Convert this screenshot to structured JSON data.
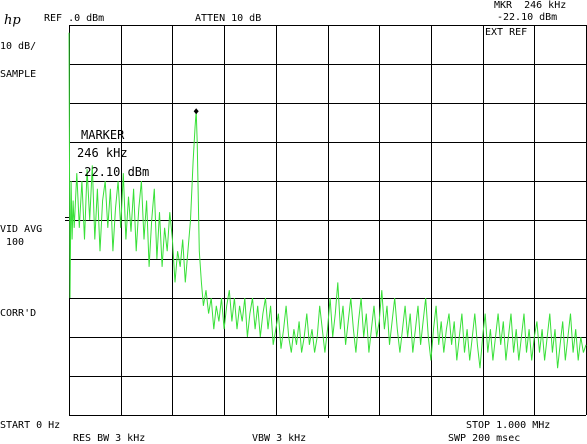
{
  "header": {
    "logo": "hp",
    "ref_level": "REF .0 dBm",
    "atten": "ATTEN 10 dB",
    "marker_readout_freq": "MKR  246 kHz",
    "marker_readout_amp": "-22.10 dBm",
    "ext_ref": "EXT REF"
  },
  "left_panel": {
    "scale": "10 dB/",
    "detector": "SAMPLE",
    "vid_avg_label": "VID AVG",
    "vid_avg_value": "100",
    "corr": "CORR'D"
  },
  "marker_box": {
    "title": "MARKER",
    "freq": "246 kHz",
    "amp": "-22.10 dBm"
  },
  "footer": {
    "start": "START 0 Hz",
    "stop": "STOP 1.000 MHz",
    "res_bw": "RES BW 3 kHz",
    "vbw": "VBW 3 kHz",
    "sweep": "SWP 200 msec"
  },
  "colors": {
    "trace": "#38e038",
    "graticule": "#000000",
    "background": "#ffffff"
  },
  "chart_data": {
    "type": "line",
    "x_unit": "kHz",
    "y_unit": "dBm",
    "xlim": [
      0,
      1000
    ],
    "ylim": [
      -100,
      0
    ],
    "x_divisions": 10,
    "y_divisions": 10,
    "grid": true,
    "marker": {
      "x": 246,
      "y": -22.1
    },
    "series": [
      {
        "values": [
          [
            0,
            -2
          ],
          [
            2,
            -70
          ],
          [
            4,
            -40
          ],
          [
            6,
            -55
          ],
          [
            8,
            -45
          ],
          [
            10,
            -52
          ],
          [
            15,
            -38
          ],
          [
            20,
            -52
          ],
          [
            25,
            -40
          ],
          [
            30,
            -55
          ],
          [
            35,
            -37
          ],
          [
            40,
            -50
          ],
          [
            45,
            -36
          ],
          [
            50,
            -55
          ],
          [
            55,
            -42
          ],
          [
            60,
            -58
          ],
          [
            65,
            -45
          ],
          [
            70,
            -40
          ],
          [
            75,
            -52
          ],
          [
            80,
            -42
          ],
          [
            85,
            -58
          ],
          [
            90,
            -47
          ],
          [
            95,
            -40
          ],
          [
            100,
            -52
          ],
          [
            105,
            -38
          ],
          [
            110,
            -55
          ],
          [
            115,
            -44
          ],
          [
            120,
            -53
          ],
          [
            125,
            -42
          ],
          [
            130,
            -58
          ],
          [
            135,
            -47
          ],
          [
            140,
            -40
          ],
          [
            145,
            -55
          ],
          [
            150,
            -45
          ],
          [
            155,
            -62
          ],
          [
            160,
            -50
          ],
          [
            165,
            -42
          ],
          [
            170,
            -60
          ],
          [
            175,
            -48
          ],
          [
            180,
            -62
          ],
          [
            185,
            -52
          ],
          [
            190,
            -58
          ],
          [
            195,
            -48
          ],
          [
            200,
            -55
          ],
          [
            205,
            -66
          ],
          [
            210,
            -58
          ],
          [
            215,
            -62
          ],
          [
            220,
            -55
          ],
          [
            225,
            -66
          ],
          [
            230,
            -58
          ],
          [
            235,
            -50
          ],
          [
            240,
            -35
          ],
          [
            244,
            -26
          ],
          [
            246,
            -22
          ],
          [
            248,
            -30
          ],
          [
            252,
            -58
          ],
          [
            256,
            -66
          ],
          [
            260,
            -72
          ],
          [
            265,
            -68
          ],
          [
            270,
            -74
          ],
          [
            275,
            -70
          ],
          [
            280,
            -78
          ],
          [
            285,
            -72
          ],
          [
            290,
            -76
          ],
          [
            295,
            -70
          ],
          [
            300,
            -78
          ],
          [
            305,
            -72
          ],
          [
            310,
            -68
          ],
          [
            315,
            -76
          ],
          [
            320,
            -70
          ],
          [
            325,
            -78
          ],
          [
            330,
            -72
          ],
          [
            335,
            -76
          ],
          [
            340,
            -70
          ],
          [
            345,
            -80
          ],
          [
            350,
            -74
          ],
          [
            355,
            -70
          ],
          [
            360,
            -78
          ],
          [
            365,
            -72
          ],
          [
            370,
            -80
          ],
          [
            375,
            -74
          ],
          [
            380,
            -70
          ],
          [
            385,
            -78
          ],
          [
            390,
            -72
          ],
          [
            395,
            -82
          ],
          [
            400,
            -78
          ],
          [
            405,
            -74
          ],
          [
            410,
            -83
          ],
          [
            415,
            -78
          ],
          [
            420,
            -72
          ],
          [
            425,
            -80
          ],
          [
            430,
            -84
          ],
          [
            435,
            -78
          ],
          [
            440,
            -82
          ],
          [
            445,
            -76
          ],
          [
            450,
            -84
          ],
          [
            455,
            -80
          ],
          [
            460,
            -74
          ],
          [
            465,
            -82
          ],
          [
            470,
            -78
          ],
          [
            475,
            -84
          ],
          [
            480,
            -80
          ],
          [
            485,
            -72
          ],
          [
            490,
            -78
          ],
          [
            495,
            -84
          ],
          [
            500,
            -78
          ],
          [
            505,
            -70
          ],
          [
            510,
            -80
          ],
          [
            515,
            -74
          ],
          [
            520,
            -66
          ],
          [
            525,
            -78
          ],
          [
            530,
            -72
          ],
          [
            535,
            -82
          ],
          [
            540,
            -76
          ],
          [
            545,
            -70
          ],
          [
            550,
            -78
          ],
          [
            555,
            -84
          ],
          [
            560,
            -76
          ],
          [
            565,
            -70
          ],
          [
            570,
            -80
          ],
          [
            575,
            -74
          ],
          [
            580,
            -84
          ],
          [
            585,
            -78
          ],
          [
            590,
            -72
          ],
          [
            595,
            -80
          ],
          [
            600,
            -76
          ],
          [
            605,
            -68
          ],
          [
            610,
            -78
          ],
          [
            615,
            -72
          ],
          [
            620,
            -82
          ],
          [
            625,
            -76
          ],
          [
            630,
            -70
          ],
          [
            635,
            -78
          ],
          [
            640,
            -84
          ],
          [
            645,
            -78
          ],
          [
            650,
            -72
          ],
          [
            655,
            -80
          ],
          [
            660,
            -74
          ],
          [
            665,
            -84
          ],
          [
            670,
            -78
          ],
          [
            675,
            -72
          ],
          [
            680,
            -82
          ],
          [
            685,
            -76
          ],
          [
            690,
            -70
          ],
          [
            695,
            -80
          ],
          [
            700,
            -86
          ],
          [
            705,
            -78
          ],
          [
            710,
            -72
          ],
          [
            715,
            -82
          ],
          [
            720,
            -76
          ],
          [
            725,
            -84
          ],
          [
            730,
            -78
          ],
          [
            735,
            -74
          ],
          [
            740,
            -82
          ],
          [
            745,
            -76
          ],
          [
            750,
            -86
          ],
          [
            755,
            -80
          ],
          [
            760,
            -74
          ],
          [
            765,
            -84
          ],
          [
            770,
            -78
          ],
          [
            775,
            -86
          ],
          [
            780,
            -80
          ],
          [
            785,
            -74
          ],
          [
            790,
            -82
          ],
          [
            795,
            -88
          ],
          [
            800,
            -80
          ],
          [
            805,
            -74
          ],
          [
            810,
            -84
          ],
          [
            815,
            -78
          ],
          [
            820,
            -86
          ],
          [
            825,
            -80
          ],
          [
            830,
            -74
          ],
          [
            835,
            -82
          ],
          [
            840,
            -76
          ],
          [
            845,
            -86
          ],
          [
            850,
            -80
          ],
          [
            855,
            -74
          ],
          [
            860,
            -84
          ],
          [
            865,
            -78
          ],
          [
            870,
            -86
          ],
          [
            875,
            -80
          ],
          [
            880,
            -74
          ],
          [
            885,
            -84
          ],
          [
            890,
            -78
          ],
          [
            895,
            -86
          ],
          [
            900,
            -80
          ],
          [
            905,
            -76
          ],
          [
            910,
            -84
          ],
          [
            915,
            -78
          ],
          [
            920,
            -86
          ],
          [
            925,
            -80
          ],
          [
            930,
            -74
          ],
          [
            935,
            -84
          ],
          [
            940,
            -78
          ],
          [
            945,
            -88
          ],
          [
            950,
            -82
          ],
          [
            955,
            -76
          ],
          [
            960,
            -86
          ],
          [
            965,
            -80
          ],
          [
            970,
            -74
          ],
          [
            975,
            -84
          ],
          [
            980,
            -78
          ],
          [
            985,
            -86
          ],
          [
            990,
            -80
          ],
          [
            995,
            -84
          ],
          [
            1000,
            -82
          ]
        ]
      }
    ]
  }
}
